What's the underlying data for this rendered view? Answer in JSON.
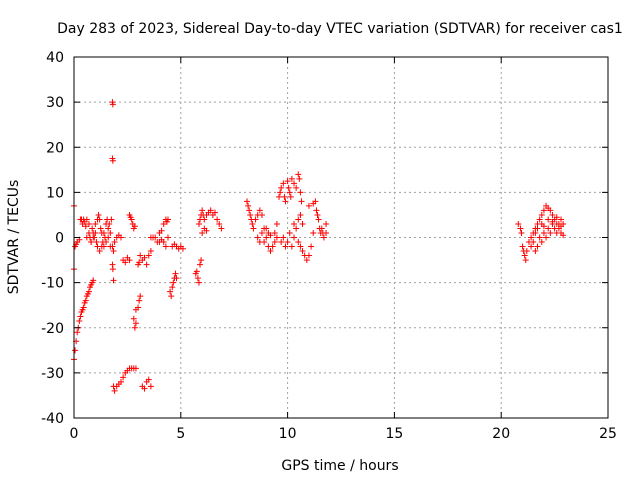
{
  "chart_data": {
    "type": "scatter",
    "title": "Day 283 of 2023, Sidereal Day-to-day VTEC variation (SDTVAR) for receiver cas1",
    "xlabel": "GPS time / hours",
    "ylabel": "SDTVAR / TECUs",
    "xlim": [
      0,
      25
    ],
    "ylim": [
      -40,
      40
    ],
    "xticks": [
      0,
      5,
      10,
      15,
      20,
      25
    ],
    "yticks": [
      -40,
      -30,
      -20,
      -10,
      0,
      10,
      20,
      30,
      40
    ],
    "grid": true,
    "marker": "+",
    "color": "#ff0000",
    "series": [
      {
        "name": "cas1 SDTVAR",
        "points": [
          [
            0.0,
            -27
          ],
          [
            0.05,
            -25
          ],
          [
            0.1,
            -23
          ],
          [
            0.15,
            -21
          ],
          [
            0.2,
            -20
          ],
          [
            0.25,
            -18.5
          ],
          [
            0.3,
            -17.5
          ],
          [
            0.35,
            -16.5
          ],
          [
            0.4,
            -16
          ],
          [
            0.45,
            -15.5
          ],
          [
            0.5,
            -14.5
          ],
          [
            0.55,
            -14
          ],
          [
            0.6,
            -13
          ],
          [
            0.65,
            -12.5
          ],
          [
            0.7,
            -12
          ],
          [
            0.75,
            -11
          ],
          [
            0.8,
            -10.5
          ],
          [
            0.85,
            -10
          ],
          [
            0.9,
            -9.5
          ],
          [
            0.0,
            7
          ],
          [
            0.0,
            -7
          ],
          [
            0.05,
            -2
          ],
          [
            0.1,
            -1.5
          ],
          [
            0.15,
            -1
          ],
          [
            0.25,
            -0.5
          ],
          [
            0.3,
            4
          ],
          [
            0.35,
            4
          ],
          [
            0.4,
            3
          ],
          [
            0.45,
            4
          ],
          [
            0.5,
            3.5
          ],
          [
            0.55,
            2.5
          ],
          [
            0.6,
            4
          ],
          [
            0.7,
            3
          ],
          [
            0.75,
            0
          ],
          [
            0.8,
            -1
          ],
          [
            0.85,
            2
          ],
          [
            0.9,
            1
          ],
          [
            0.95,
            0
          ],
          [
            1.0,
            3
          ],
          [
            1.05,
            -1
          ],
          [
            1.1,
            4
          ],
          [
            1.15,
            5
          ],
          [
            1.2,
            4
          ],
          [
            1.25,
            2
          ],
          [
            1.3,
            1
          ],
          [
            1.35,
            -1
          ],
          [
            1.4,
            -2
          ],
          [
            1.45,
            0
          ],
          [
            1.5,
            3
          ],
          [
            1.55,
            4
          ],
          [
            1.6,
            2
          ],
          [
            1.65,
            3
          ],
          [
            1.7,
            1
          ],
          [
            1.75,
            4
          ],
          [
            1.8,
            -2
          ],
          [
            1.85,
            -3
          ],
          [
            1.9,
            -1
          ],
          [
            0.6,
            0
          ],
          [
            0.7,
            1
          ],
          [
            0.8,
            -1
          ],
          [
            0.9,
            0
          ],
          [
            1.0,
            1
          ],
          [
            1.1,
            -2
          ],
          [
            1.2,
            -3
          ],
          [
            1.3,
            -2
          ],
          [
            1.4,
            1
          ],
          [
            1.5,
            -1
          ],
          [
            1.6,
            0
          ],
          [
            1.7,
            -2
          ],
          [
            1.8,
            30
          ],
          [
            1.82,
            29.5
          ],
          [
            1.8,
            17.5
          ],
          [
            1.82,
            17
          ],
          [
            1.8,
            -6
          ],
          [
            1.82,
            -7
          ],
          [
            1.85,
            -9.5
          ],
          [
            2.0,
            0
          ],
          [
            2.1,
            0.5
          ],
          [
            2.2,
            0
          ],
          [
            1.85,
            -33
          ],
          [
            1.9,
            -34
          ],
          [
            2.0,
            -33
          ],
          [
            2.1,
            -32.5
          ],
          [
            2.2,
            -32
          ],
          [
            2.3,
            -31
          ],
          [
            2.4,
            -30
          ],
          [
            2.5,
            -29.5
          ],
          [
            2.6,
            -29
          ],
          [
            2.7,
            -29
          ],
          [
            2.8,
            -29
          ],
          [
            2.9,
            -29
          ],
          [
            2.3,
            -5
          ],
          [
            2.4,
            -5.5
          ],
          [
            2.5,
            -4.5
          ],
          [
            2.6,
            -5
          ],
          [
            2.6,
            5
          ],
          [
            2.65,
            4.5
          ],
          [
            2.7,
            4
          ],
          [
            2.75,
            3
          ],
          [
            2.8,
            2
          ],
          [
            2.85,
            2.5
          ],
          [
            2.8,
            -18
          ],
          [
            2.85,
            -20
          ],
          [
            2.9,
            -19
          ],
          [
            2.9,
            -16
          ],
          [
            3.0,
            -15.5
          ],
          [
            3.05,
            -14
          ],
          [
            3.1,
            -13
          ],
          [
            3.0,
            -6
          ],
          [
            3.05,
            -5.5
          ],
          [
            3.1,
            -4
          ],
          [
            3.2,
            -5
          ],
          [
            3.3,
            -4.5
          ],
          [
            3.4,
            -6
          ],
          [
            3.5,
            -4
          ],
          [
            3.6,
            -3
          ],
          [
            3.2,
            -33
          ],
          [
            3.3,
            -33.5
          ],
          [
            3.4,
            -32
          ],
          [
            3.5,
            -31.5
          ],
          [
            3.6,
            -33
          ],
          [
            3.6,
            0
          ],
          [
            3.7,
            0
          ],
          [
            3.8,
            0
          ],
          [
            3.9,
            -1
          ],
          [
            4.0,
            1
          ],
          [
            4.1,
            1.5
          ],
          [
            4.2,
            3
          ],
          [
            4.3,
            4
          ],
          [
            4.35,
            3.5
          ],
          [
            4.4,
            4
          ],
          [
            4.0,
            -1
          ],
          [
            4.1,
            -0.5
          ],
          [
            4.2,
            -1
          ],
          [
            4.3,
            -2
          ],
          [
            4.4,
            0
          ],
          [
            4.5,
            -12
          ],
          [
            4.55,
            -13
          ],
          [
            4.6,
            -11
          ],
          [
            4.65,
            -10
          ],
          [
            4.7,
            -9
          ],
          [
            4.75,
            -8
          ],
          [
            4.8,
            -9
          ],
          [
            4.6,
            -2
          ],
          [
            4.7,
            -1.5
          ],
          [
            4.8,
            -2
          ],
          [
            4.9,
            -2.5
          ],
          [
            5.0,
            -2
          ],
          [
            5.1,
            -2.5
          ],
          [
            5.7,
            -8
          ],
          [
            5.75,
            -7.5
          ],
          [
            5.8,
            -9
          ],
          [
            5.85,
            -10
          ],
          [
            5.9,
            -6
          ],
          [
            5.95,
            -5
          ],
          [
            5.85,
            3
          ],
          [
            5.9,
            4
          ],
          [
            5.95,
            5
          ],
          [
            6.0,
            6
          ],
          [
            6.05,
            5
          ],
          [
            6.1,
            4
          ],
          [
            6.2,
            5
          ],
          [
            6.3,
            5.5
          ],
          [
            6.4,
            6
          ],
          [
            6.5,
            5
          ],
          [
            6.6,
            5.5
          ],
          [
            6.7,
            4
          ],
          [
            6.8,
            3
          ],
          [
            6.9,
            2
          ],
          [
            6.0,
            1
          ],
          [
            6.1,
            2
          ],
          [
            6.2,
            1.5
          ],
          [
            8.1,
            8
          ],
          [
            8.15,
            7
          ],
          [
            8.2,
            6
          ],
          [
            8.25,
            5
          ],
          [
            8.3,
            4
          ],
          [
            8.35,
            3
          ],
          [
            8.4,
            2
          ],
          [
            8.5,
            4
          ],
          [
            8.6,
            5
          ],
          [
            8.7,
            6
          ],
          [
            8.8,
            5
          ],
          [
            8.9,
            2
          ],
          [
            9.0,
            0
          ],
          [
            9.1,
            -2
          ],
          [
            9.2,
            -3
          ],
          [
            9.3,
            -2
          ],
          [
            9.4,
            1
          ],
          [
            9.5,
            0
          ],
          [
            8.6,
            0
          ],
          [
            8.7,
            -1
          ],
          [
            8.8,
            1
          ],
          [
            8.9,
            -1
          ],
          [
            9.0,
            2
          ],
          [
            9.1,
            1
          ],
          [
            9.2,
            0.5
          ],
          [
            9.4,
            -1
          ],
          [
            9.5,
            3
          ],
          [
            9.6,
            9
          ],
          [
            9.65,
            10
          ],
          [
            9.7,
            11
          ],
          [
            9.8,
            12
          ],
          [
            9.85,
            9
          ],
          [
            9.9,
            8
          ],
          [
            10.0,
            12.5
          ],
          [
            10.05,
            11
          ],
          [
            10.1,
            10
          ],
          [
            10.15,
            9
          ],
          [
            10.2,
            13
          ],
          [
            10.3,
            12
          ],
          [
            10.4,
            11
          ],
          [
            10.5,
            14
          ],
          [
            10.55,
            13
          ],
          [
            10.6,
            10
          ],
          [
            10.65,
            8
          ],
          [
            9.7,
            -1
          ],
          [
            9.8,
            0
          ],
          [
            9.9,
            -2
          ],
          [
            10.0,
            -1
          ],
          [
            10.1,
            1
          ],
          [
            10.2,
            -2
          ],
          [
            10.3,
            0
          ],
          [
            10.4,
            2
          ],
          [
            10.5,
            -1
          ],
          [
            10.6,
            -2
          ],
          [
            10.7,
            -3
          ],
          [
            10.8,
            -4
          ],
          [
            10.9,
            -5
          ],
          [
            11.0,
            -4
          ],
          [
            11.1,
            -2
          ],
          [
            11.2,
            1
          ],
          [
            10.3,
            3
          ],
          [
            10.5,
            4
          ],
          [
            10.6,
            5
          ],
          [
            10.7,
            3
          ],
          [
            11.0,
            7
          ],
          [
            11.2,
            7.5
          ],
          [
            11.3,
            8
          ],
          [
            11.35,
            6
          ],
          [
            11.4,
            5
          ],
          [
            11.45,
            4
          ],
          [
            11.5,
            2
          ],
          [
            11.55,
            1
          ],
          [
            11.6,
            2
          ],
          [
            11.65,
            1
          ],
          [
            11.7,
            0
          ],
          [
            11.8,
            1
          ],
          [
            11.8,
            3
          ],
          [
            20.8,
            3
          ],
          [
            20.9,
            2
          ],
          [
            20.95,
            1
          ],
          [
            21.0,
            -2
          ],
          [
            21.05,
            -3
          ],
          [
            21.1,
            -4
          ],
          [
            21.15,
            -5
          ],
          [
            21.2,
            -3
          ],
          [
            21.3,
            -1
          ],
          [
            21.4,
            0
          ],
          [
            21.5,
            1
          ],
          [
            21.6,
            2
          ],
          [
            21.7,
            3
          ],
          [
            21.8,
            4
          ],
          [
            21.9,
            5
          ],
          [
            22.0,
            6
          ],
          [
            22.1,
            7
          ],
          [
            22.2,
            6.5
          ],
          [
            22.3,
            6
          ],
          [
            22.4,
            5
          ],
          [
            22.5,
            4
          ],
          [
            22.6,
            4.5
          ],
          [
            22.7,
            3
          ],
          [
            22.8,
            4
          ],
          [
            22.9,
            3
          ],
          [
            21.4,
            -2
          ],
          [
            21.5,
            -1
          ],
          [
            21.6,
            -3
          ],
          [
            21.7,
            -2
          ],
          [
            21.8,
            0
          ],
          [
            21.9,
            -1
          ],
          [
            22.0,
            1
          ],
          [
            22.1,
            0
          ],
          [
            22.2,
            2
          ],
          [
            22.3,
            1
          ],
          [
            22.4,
            3
          ],
          [
            22.5,
            2
          ],
          [
            22.6,
            1
          ],
          [
            22.7,
            2
          ],
          [
            22.8,
            1
          ],
          [
            22.9,
            0.5
          ],
          [
            21.6,
            1
          ],
          [
            21.7,
            2
          ],
          [
            21.9,
            3
          ],
          [
            22.0,
            2.5
          ],
          [
            22.2,
            4
          ],
          [
            22.4,
            3.5
          ],
          [
            22.6,
            3
          ],
          [
            22.8,
            2.5
          ]
        ]
      }
    ]
  }
}
